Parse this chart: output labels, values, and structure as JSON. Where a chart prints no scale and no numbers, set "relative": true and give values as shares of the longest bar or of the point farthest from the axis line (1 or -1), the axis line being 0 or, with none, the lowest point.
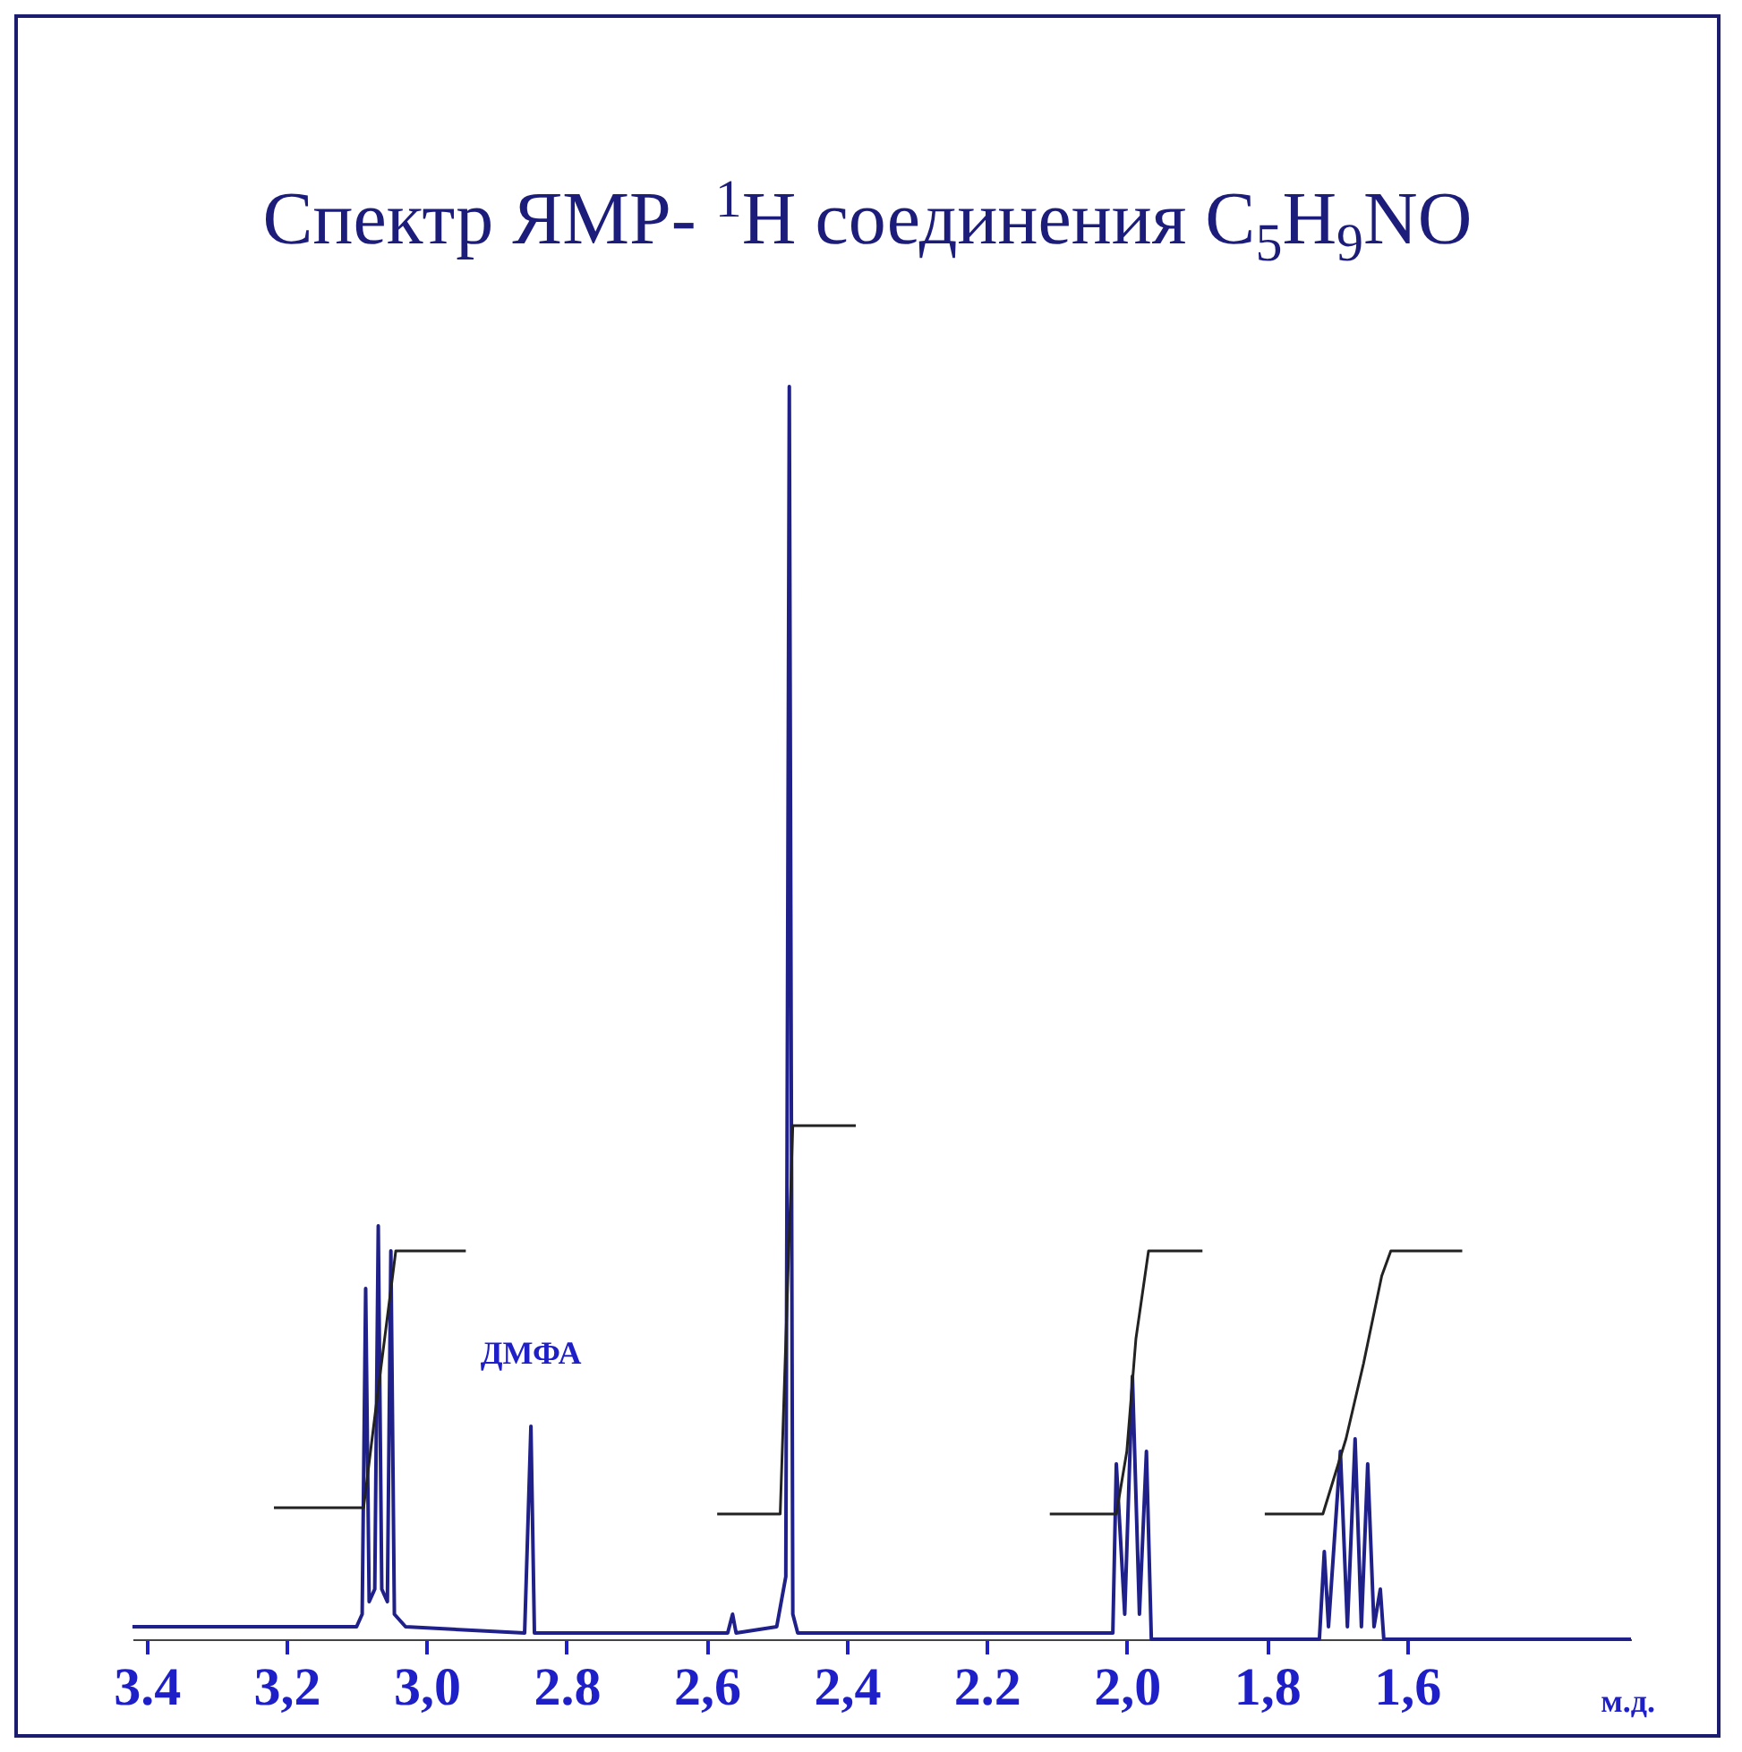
{
  "chart_data": {
    "type": "line",
    "title": "Спектр ЯМР- $^{1}$H соединения  C$_{5}$H$_{9}$NO",
    "xlabel": "м.д.",
    "relative": true,
    "tick_labels": "x",
    "grid": false,
    "marker": "none",
    "line_style": "solid",
    "xlim": [
      3.42,
      1.28
    ],
    "xticks": [
      {
        "value": 3.4,
        "label": "3.4"
      },
      {
        "value": 3.2,
        "label": "3,2"
      },
      {
        "value": 3.0,
        "label": "3,0"
      },
      {
        "value": 2.8,
        "label": "2.8"
      },
      {
        "value": 2.6,
        "label": "2,6"
      },
      {
        "value": 2.4,
        "label": "2,4"
      },
      {
        "value": 2.2,
        "label": "2.2"
      },
      {
        "value": 2.0,
        "label": "2,0"
      },
      {
        "value": 1.8,
        "label": "1,8"
      },
      {
        "value": 1.6,
        "label": "1,6"
      }
    ],
    "annotations": [
      {
        "text": "ДМФА",
        "x": 2.851,
        "y": 0.17
      }
    ],
    "series": [
      {
        "color": "#20208a",
        "x": [
          3.42,
          3.1,
          3.092,
          3.087,
          3.082,
          3.074,
          3.069,
          3.064,
          3.056,
          3.051,
          3.046,
          3.03,
          2.86,
          2.851,
          2.846,
          2.57,
          2.563,
          2.558,
          2.5,
          2.487,
          2.482,
          2.477,
          2.47,
          2.02,
          2.015,
          2.003,
          1.992,
          1.982,
          1.972,
          1.965,
          1.725,
          1.718,
          1.712,
          1.695,
          1.685,
          1.674,
          1.665,
          1.656,
          1.647,
          1.638,
          1.633,
          1.28
        ],
        "values": [
          0.01,
          0.01,
          0.02,
          0.28,
          0.03,
          0.04,
          0.33,
          0.04,
          0.03,
          0.31,
          0.02,
          0.01,
          0.005,
          0.17,
          0.005,
          0.005,
          0.02,
          0.005,
          0.01,
          0.05,
          1,
          0.02,
          0.005,
          0.005,
          0.14,
          0.02,
          0.21,
          0.02,
          0.15,
          0,
          0,
          0.07,
          0.01,
          0.15,
          0.01,
          0.16,
          0.01,
          0.14,
          0.01,
          0.04,
          0,
          0
        ]
      },
      {
        "color": "#222222",
        "x": [
          3.218,
          3.09,
          3.069,
          3.044,
          2.944
        ],
        "values": [
          0.105,
          0.105,
          0.2,
          0.31,
          0.31
        ]
      },
      {
        "color": "#222222",
        "x": [
          2.585,
          2.495,
          2.477,
          2.387
        ],
        "values": [
          0.1,
          0.1,
          0.41,
          0.41
        ]
      },
      {
        "color": "#222222",
        "x": [
          2.11,
          2.015,
          2.0,
          1.987,
          1.969,
          1.892
        ],
        "values": [
          0.1,
          0.1,
          0.15,
          0.24,
          0.31,
          0.31
        ]
      },
      {
        "color": "#222222",
        "x": [
          1.803,
          1.72,
          1.687,
          1.662,
          1.636,
          1.623,
          1.521
        ],
        "values": [
          0.1,
          0.1,
          0.16,
          0.22,
          0.29,
          0.31,
          0.31
        ]
      }
    ]
  }
}
